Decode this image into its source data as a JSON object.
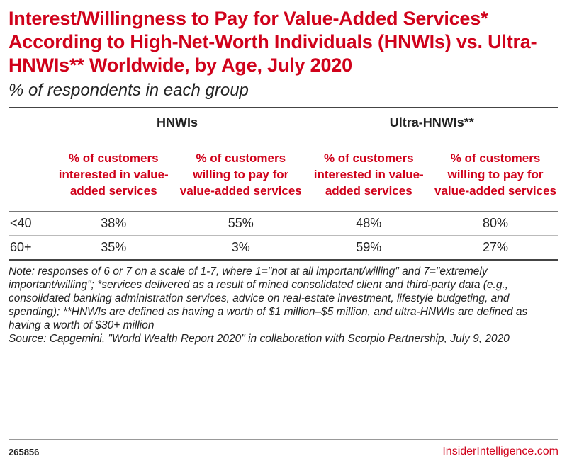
{
  "chart_data": {
    "type": "table",
    "title": "Interest/Willingness to Pay for Value-Added Services* According to High-Net-Worth Individuals (HNWIs) vs. Ultra-HNWIs** Worldwide, by Age, July 2020",
    "subtitle": "% of respondents in each group",
    "groups": [
      "HNWIs",
      "Ultra-HNWIs**"
    ],
    "column_headers": [
      "% of customers interested in value-added services",
      "% of customers willing to pay for value-added services",
      "% of customers interested in value-added services",
      "% of customers willing to pay for value-added services"
    ],
    "rows": [
      {
        "label": "<40",
        "values": [
          "38%",
          "55%",
          "48%",
          "80%"
        ]
      },
      {
        "label": "60+",
        "values": [
          "35%",
          "3%",
          "59%",
          "27%"
        ]
      }
    ],
    "note": "Note: responses of 6 or 7 on a scale of 1-7, where 1=\"not at all important/willing\" and 7=\"extremely important/willing\"; *services delivered as a result of mined consolidated client and third-party data (e.g., consolidated banking administration services, advice on real-estate investment, lifestyle budgeting, and spending); **HNWIs are defined as having a worth of $1 million–$5 million, and ultra-HNWIs are defined as having a worth of $30+ million",
    "source": "Source: Capgemini, \"World Wealth Report 2020\" in collaboration with Scorpio Partnership, July 9, 2020"
  },
  "footer": {
    "chart_id": "265856",
    "brand": "InsiderIntelligence.com"
  },
  "colors": {
    "accent": "#d0021b",
    "text": "#222222"
  }
}
